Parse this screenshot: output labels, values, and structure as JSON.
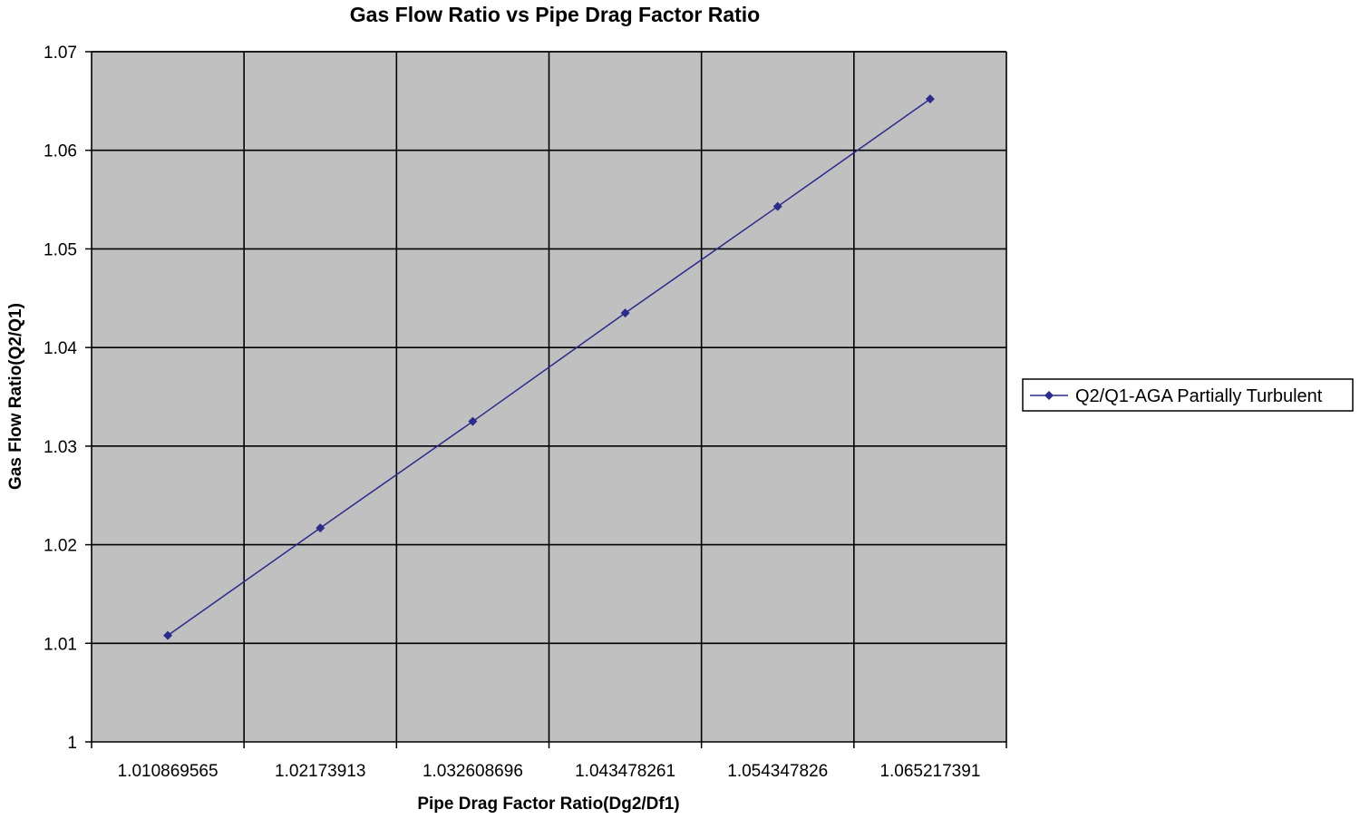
{
  "chart_data": {
    "type": "line",
    "title": "Gas Flow Ratio vs Pipe Drag Factor Ratio",
    "xlabel": "Pipe Drag Factor Ratio(Dg2/Df1)",
    "ylabel": "Gas Flow Ratio(Q2/Q1)",
    "categories": [
      "1.010869565",
      "1.02173913",
      "1.032608696",
      "1.043478261",
      "1.054347826",
      "1.065217391"
    ],
    "ylim": [
      1,
      1.07
    ],
    "yticks": [
      "1",
      "1.01",
      "1.02",
      "1.03",
      "1.04",
      "1.05",
      "1.06",
      "1.07"
    ],
    "grid": true,
    "legend_position": "right",
    "series": [
      {
        "name": "Q2/Q1-AGA Partially Turbulent",
        "values": [
          1.0108,
          1.0217,
          1.0325,
          1.0435,
          1.0543,
          1.0652
        ],
        "color": "#2b2b8c"
      }
    ],
    "plot_background": "#c0c0c0",
    "grid_color": "#000000"
  }
}
